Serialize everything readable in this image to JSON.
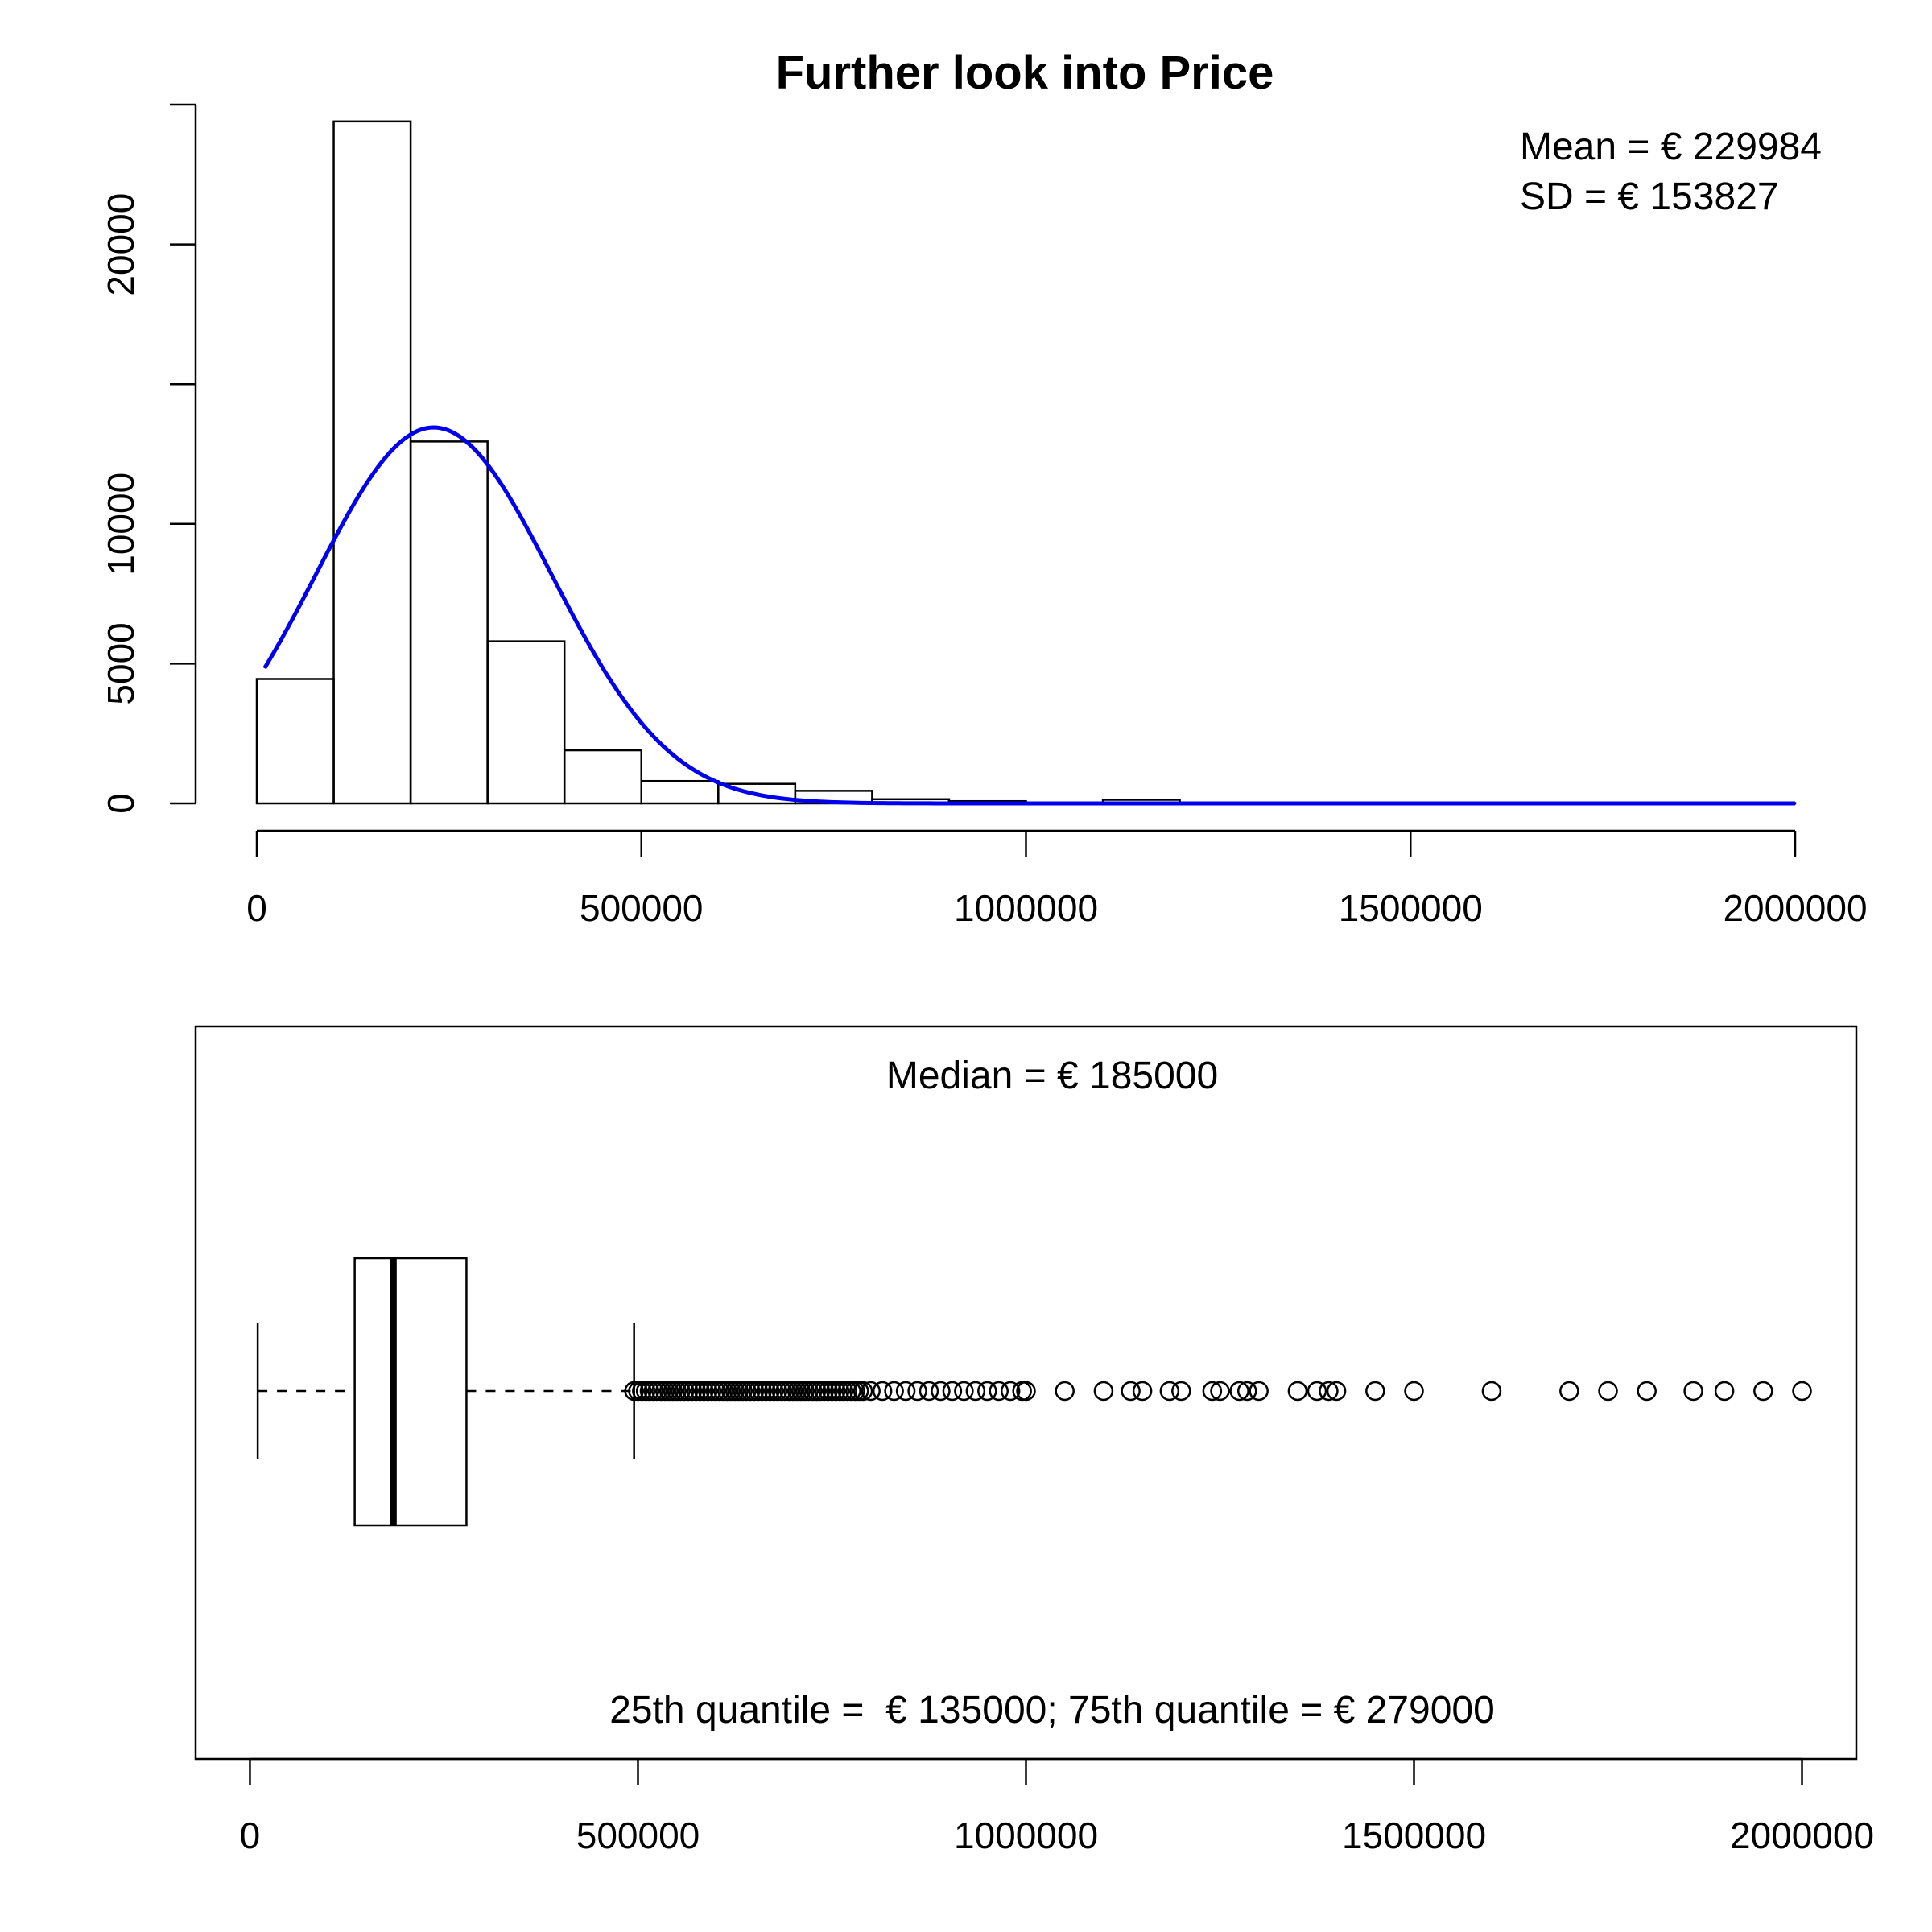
{
  "chart_data": [
    {
      "type": "bar",
      "subtype": "histogram",
      "title": "Further look into Price",
      "xlabel": "",
      "ylabel": "",
      "bin_width": 100000,
      "bins": [
        {
          "start": 0,
          "end": 100000,
          "count": 4450
        },
        {
          "start": 100000,
          "end": 200000,
          "count": 24400
        },
        {
          "start": 200000,
          "end": 300000,
          "count": 12950
        },
        {
          "start": 300000,
          "end": 400000,
          "count": 5800
        },
        {
          "start": 400000,
          "end": 500000,
          "count": 1900
        },
        {
          "start": 500000,
          "end": 600000,
          "count": 800
        },
        {
          "start": 600000,
          "end": 700000,
          "count": 700
        },
        {
          "start": 700000,
          "end": 800000,
          "count": 450
        },
        {
          "start": 800000,
          "end": 900000,
          "count": 150
        },
        {
          "start": 900000,
          "end": 1000000,
          "count": 80
        },
        {
          "start": 1000000,
          "end": 1100000,
          "count": 20
        },
        {
          "start": 1100000,
          "end": 1200000,
          "count": 130
        },
        {
          "start": 1200000,
          "end": 1300000,
          "count": 10
        },
        {
          "start": 1300000,
          "end": 1400000,
          "count": 10
        },
        {
          "start": 1400000,
          "end": 1500000,
          "count": 10
        },
        {
          "start": 1500000,
          "end": 1600000,
          "count": 10
        },
        {
          "start": 1600000,
          "end": 1700000,
          "count": 10
        },
        {
          "start": 1700000,
          "end": 1800000,
          "count": 10
        },
        {
          "start": 1800000,
          "end": 1900000,
          "count": 10
        },
        {
          "start": 1900000,
          "end": 2000000,
          "count": 10
        }
      ],
      "normal_curve": {
        "color": "#0000ee",
        "mean": 229984,
        "sd": 153827,
        "peak_count": 13450,
        "x_range": [
          10000,
          2000000
        ]
      },
      "xlim": [
        0,
        2000000
      ],
      "ylim": [
        0,
        25000
      ],
      "x_ticks": [
        0,
        500000,
        1000000,
        1500000,
        2000000
      ],
      "x_tick_labels": [
        "0",
        "500000",
        "1000000",
        "1500000",
        "2000000"
      ],
      "y_ticks": [
        0,
        5000,
        10000,
        15000,
        20000,
        25000
      ],
      "y_tick_labels": [
        "0",
        "5000",
        "10000",
        "",
        "20000",
        ""
      ],
      "annotations": {
        "mean": "Mean = € 229984",
        "sd": "SD = € 153827"
      },
      "grid": false
    },
    {
      "type": "boxplot",
      "orientation": "horizontal",
      "min": 10000,
      "q1": 135000,
      "median": 185000,
      "q3": 279000,
      "whisker_high": 495000,
      "outlier_dense_range": [
        495000,
        790000
      ],
      "outliers": [
        800000,
        815000,
        830000,
        845000,
        860000,
        875000,
        890000,
        905000,
        920000,
        935000,
        950000,
        965000,
        980000,
        995000,
        1000000,
        1050000,
        1100000,
        1135000,
        1150000,
        1185000,
        1200000,
        1240000,
        1250000,
        1275000,
        1285000,
        1300000,
        1350000,
        1375000,
        1390000,
        1400000,
        1450000,
        1500000,
        1600000,
        1700000,
        1750000,
        1800000,
        1860000,
        1900000,
        1950000,
        2000000
      ],
      "xlim": [
        -70000,
        2070000
      ],
      "x_ticks": [
        0,
        500000,
        1000000,
        1500000,
        2000000
      ],
      "x_tick_labels": [
        "0",
        "500000",
        "1000000",
        "1500000",
        "2000000"
      ],
      "annotations": {
        "median": "Median = € 185000",
        "quantiles": "25th quantile =  € 135000; 75th quantile = € 279000"
      }
    }
  ]
}
